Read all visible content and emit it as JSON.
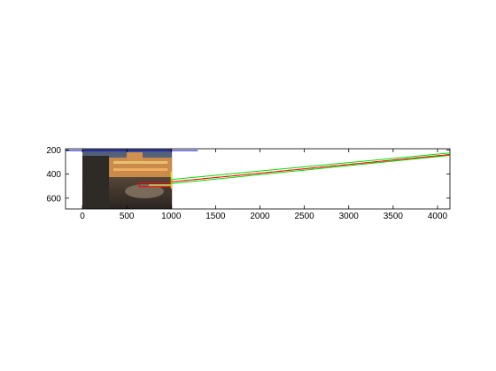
{
  "chart_data": {
    "type": "line",
    "title": "",
    "xlabel": "",
    "ylabel": "",
    "xlim": [
      -190,
      4140
    ],
    "ylim": [
      690,
      190
    ],
    "y_reversed": true,
    "x_ticks": [
      "0",
      "500",
      "1000",
      "1500",
      "2000",
      "2500",
      "3000",
      "3500",
      "4000"
    ],
    "x_tick_values": [
      0,
      500,
      1000,
      1500,
      2000,
      2500,
      3000,
      3500,
      4000
    ],
    "y_ticks": [
      "200",
      "400",
      "600"
    ],
    "y_tick_values": [
      200,
      400,
      600
    ],
    "grid": false,
    "embedded_image": {
      "description": "photo of a building and plaza at dusk",
      "x_range": [
        0,
        1010
      ],
      "y_range": [
        190,
        690
      ]
    },
    "series": [
      {
        "color": "#0000cc",
        "x": [
          -190,
          1300
        ],
        "y": [
          205,
          205
        ]
      },
      {
        "color": "#ff0000",
        "x": [
          640,
          1000
        ],
        "y": [
          470,
          470
        ]
      },
      {
        "color": "#ff0000",
        "x": [
          640,
          1000
        ],
        "y": [
          505,
          505
        ]
      },
      {
        "color": "#ff0000",
        "x": [
          640,
          640
        ],
        "y": [
          470,
          505
        ]
      },
      {
        "color": "#ffff00",
        "x": [
          1000,
          1000
        ],
        "y": [
          380,
          520
        ]
      },
      {
        "color": "#00dd00",
        "x": [
          1000,
          4140
        ],
        "y": [
          445,
          225
        ]
      },
      {
        "color": "#00dd00",
        "x": [
          1000,
          4140
        ],
        "y": [
          480,
          245
        ]
      },
      {
        "color": "#ff0000",
        "x": [
          1000,
          4140
        ],
        "y": [
          465,
          238
        ]
      }
    ]
  }
}
